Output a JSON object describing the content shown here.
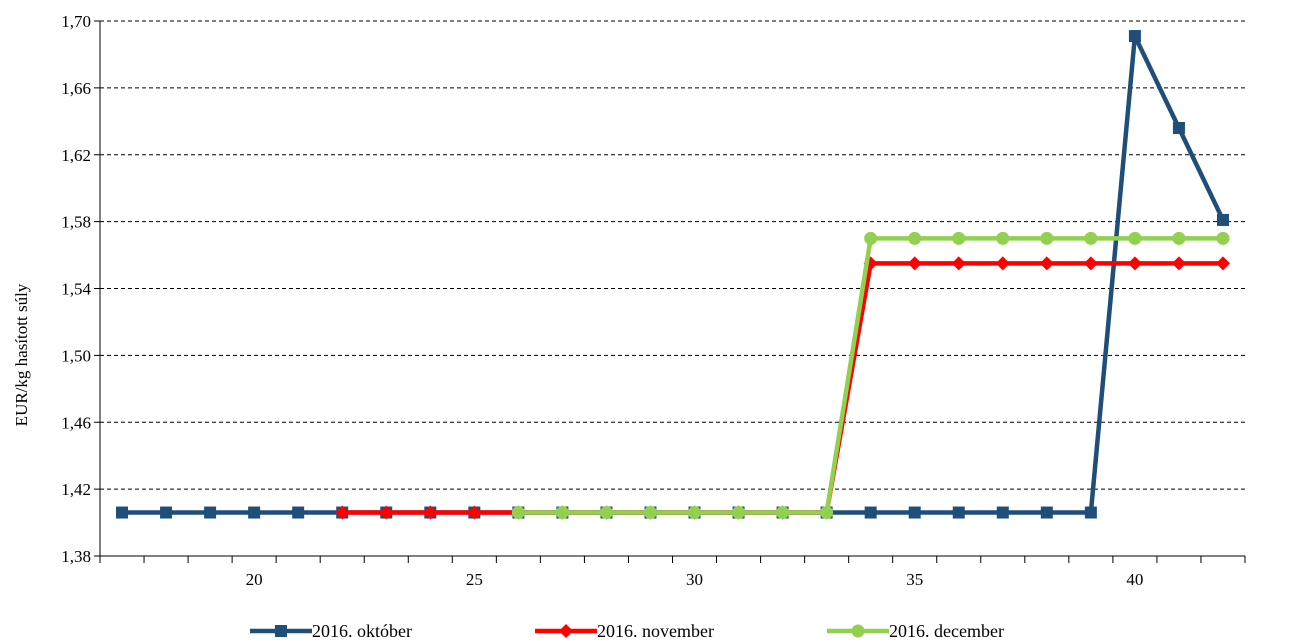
{
  "chart_data": {
    "type": "line",
    "ylabel": "EUR/kg hasított súly",
    "xlabel": "",
    "ylim": [
      1.38,
      1.7
    ],
    "y_ticks": [
      "1,38",
      "1,42",
      "1,46",
      "1,50",
      "1,54",
      "1,58",
      "1,62",
      "1,66",
      "1,70"
    ],
    "y_tick_values": [
      1.38,
      1.42,
      1.46,
      1.5,
      1.54,
      1.58,
      1.62,
      1.66,
      1.7
    ],
    "xlim": [
      16.5,
      42.5
    ],
    "x_ticks": [
      "20",
      "25",
      "30",
      "35",
      "40"
    ],
    "x_tick_values": [
      20,
      25,
      30,
      35,
      40
    ],
    "grid": "horizontal dashed",
    "legend_position": "bottom",
    "series": [
      {
        "name": "2016. október",
        "color": "#1f4e79",
        "marker": "square",
        "points": [
          [
            17,
            1.406
          ],
          [
            18,
            1.406
          ],
          [
            19,
            1.406
          ],
          [
            20,
            1.406
          ],
          [
            21,
            1.406
          ],
          [
            22,
            1.406
          ],
          [
            23,
            1.406
          ],
          [
            24,
            1.406
          ],
          [
            25,
            1.406
          ],
          [
            26,
            1.406
          ],
          [
            27,
            1.406
          ],
          [
            28,
            1.406
          ],
          [
            29,
            1.406
          ],
          [
            30,
            1.406
          ],
          [
            31,
            1.406
          ],
          [
            32,
            1.406
          ],
          [
            33,
            1.406
          ],
          [
            34,
            1.406
          ],
          [
            35,
            1.406
          ],
          [
            36,
            1.406
          ],
          [
            37,
            1.406
          ],
          [
            38,
            1.406
          ],
          [
            39,
            1.406
          ],
          [
            40,
            1.691
          ],
          [
            41,
            1.636
          ],
          [
            42,
            1.581
          ]
        ]
      },
      {
        "name": "2016. november",
        "color": "#ff0000",
        "marker": "diamond",
        "points": [
          [
            22,
            1.406
          ],
          [
            23,
            1.406
          ],
          [
            24,
            1.406
          ],
          [
            25,
            1.406
          ],
          [
            26,
            1.406
          ],
          [
            27,
            1.406
          ],
          [
            28,
            1.406
          ],
          [
            29,
            1.406
          ],
          [
            30,
            1.406
          ],
          [
            31,
            1.406
          ],
          [
            32,
            1.406
          ],
          [
            33,
            1.406
          ],
          [
            34,
            1.555
          ],
          [
            35,
            1.555
          ],
          [
            36,
            1.555
          ],
          [
            37,
            1.555
          ],
          [
            38,
            1.555
          ],
          [
            39,
            1.555
          ],
          [
            40,
            1.555
          ],
          [
            41,
            1.555
          ],
          [
            42,
            1.555
          ]
        ]
      },
      {
        "name": "2016. december",
        "color": "#92d050",
        "marker": "circle",
        "points": [
          [
            26,
            1.406
          ],
          [
            27,
            1.406
          ],
          [
            28,
            1.406
          ],
          [
            29,
            1.406
          ],
          [
            30,
            1.406
          ],
          [
            31,
            1.406
          ],
          [
            32,
            1.406
          ],
          [
            33,
            1.406
          ],
          [
            34,
            1.57
          ],
          [
            35,
            1.57
          ],
          [
            36,
            1.57
          ],
          [
            37,
            1.57
          ],
          [
            38,
            1.57
          ],
          [
            39,
            1.57
          ],
          [
            40,
            1.57
          ],
          [
            41,
            1.57
          ],
          [
            42,
            1.57
          ]
        ]
      }
    ]
  }
}
